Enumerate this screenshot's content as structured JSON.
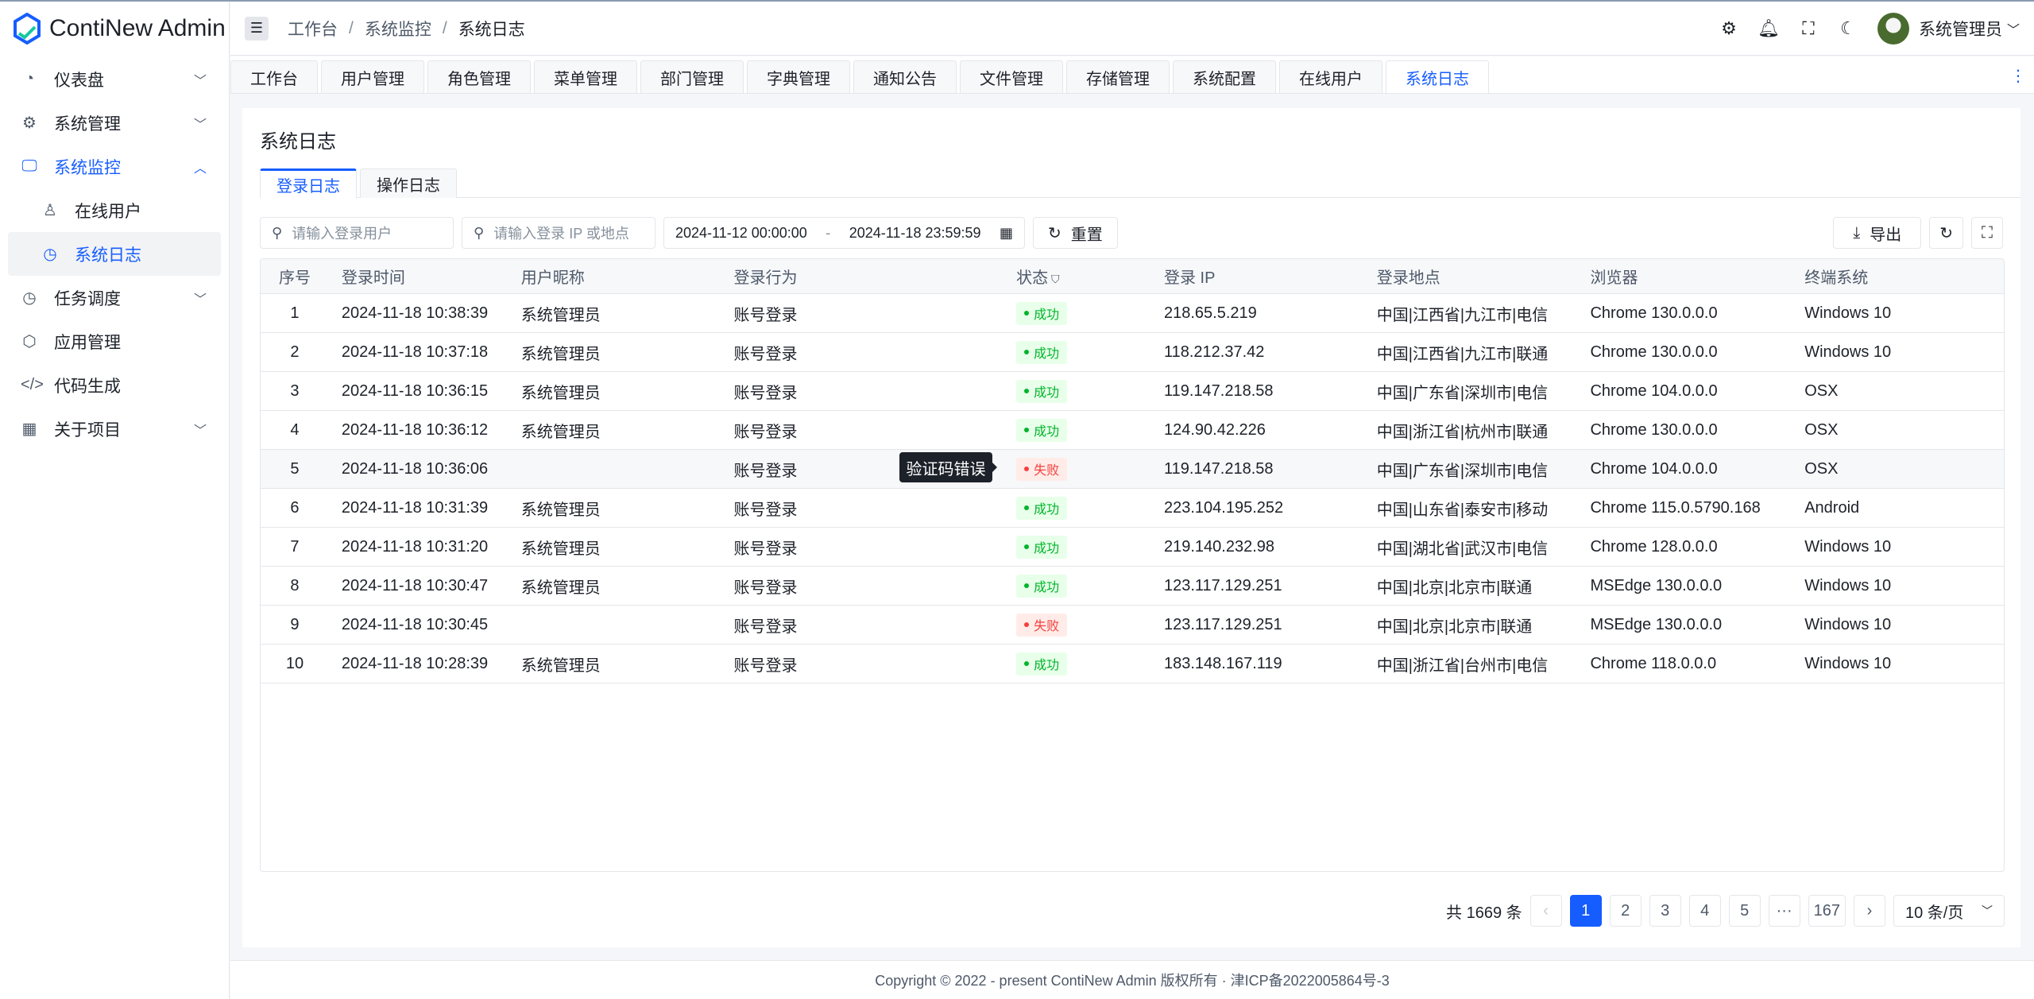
{
  "app": {
    "name": "ContiNew Admin"
  },
  "colors": {
    "primary": "#165dff",
    "success": "#00b42a",
    "danger": "#f53f3f"
  },
  "sidebar": {
    "items": [
      {
        "label": "仪表盘",
        "icon": "dashboard-icon",
        "chevron": "down"
      },
      {
        "label": "系统管理",
        "icon": "gear-icon",
        "chevron": "down"
      },
      {
        "label": "系统监控",
        "icon": "monitor-icon",
        "chevron": "up"
      },
      {
        "label": "在线用户",
        "icon": "user-icon"
      },
      {
        "label": "系统日志",
        "icon": "clock-icon"
      },
      {
        "label": "任务调度",
        "icon": "clock-icon",
        "chevron": "down"
      },
      {
        "label": "应用管理",
        "icon": "cube-icon"
      },
      {
        "label": "代码生成",
        "icon": "code-icon"
      },
      {
        "label": "关于项目",
        "icon": "grid-icon",
        "chevron": "down"
      }
    ]
  },
  "header": {
    "breadcrumb": [
      "工作台",
      "系统监控",
      "系统日志"
    ],
    "sep": "/",
    "user": "系统管理员"
  },
  "tabs": [
    "工作台",
    "用户管理",
    "角色管理",
    "菜单管理",
    "部门管理",
    "字典管理",
    "通知公告",
    "文件管理",
    "存储管理",
    "系统配置",
    "在线用户",
    "系统日志"
  ],
  "page": {
    "title": "系统日志",
    "tabs": [
      "登录日志",
      "操作日志"
    ],
    "filters": {
      "user_placeholder": "请输入登录用户",
      "ip_placeholder": "请输入登录 IP 或地点",
      "date_start": "2024-11-12 00:00:00",
      "date_sep": "-",
      "date_end": "2024-11-18 23:59:59",
      "reset": "重置",
      "export": "导出"
    }
  },
  "table": {
    "columns": [
      "序号",
      "登录时间",
      "用户昵称",
      "登录行为",
      "状态",
      "登录 IP",
      "登录地点",
      "浏览器",
      "终端系统"
    ],
    "rows": [
      [
        "1",
        "2024-11-18 10:38:39",
        "系统管理员",
        "账号登录",
        "成功",
        "218.65.5.219",
        "中国|江西省|九江市|电信",
        "Chrome 130.0.0.0",
        "Windows 10"
      ],
      [
        "2",
        "2024-11-18 10:37:18",
        "系统管理员",
        "账号登录",
        "成功",
        "118.212.37.42",
        "中国|江西省|九江市|联通",
        "Chrome 130.0.0.0",
        "Windows 10"
      ],
      [
        "3",
        "2024-11-18 10:36:15",
        "系统管理员",
        "账号登录",
        "成功",
        "119.147.218.58",
        "中国|广东省|深圳市|电信",
        "Chrome 104.0.0.0",
        "OSX"
      ],
      [
        "4",
        "2024-11-18 10:36:12",
        "系统管理员",
        "账号登录",
        "成功",
        "124.90.42.226",
        "中国|浙江省|杭州市|联通",
        "Chrome 130.0.0.0",
        "OSX"
      ],
      [
        "5",
        "2024-11-18 10:36:06",
        "",
        "账号登录",
        "失败",
        "119.147.218.58",
        "中国|广东省|深圳市|电信",
        "Chrome 104.0.0.0",
        "OSX"
      ],
      [
        "6",
        "2024-11-18 10:31:39",
        "系统管理员",
        "账号登录",
        "成功",
        "223.104.195.252",
        "中国|山东省|泰安市|移动",
        "Chrome 115.0.5790.168",
        "Android"
      ],
      [
        "7",
        "2024-11-18 10:31:20",
        "系统管理员",
        "账号登录",
        "成功",
        "219.140.232.98",
        "中国|湖北省|武汉市|电信",
        "Chrome 128.0.0.0",
        "Windows 10"
      ],
      [
        "8",
        "2024-11-18 10:30:47",
        "系统管理员",
        "账号登录",
        "成功",
        "123.117.129.251",
        "中国|北京|北京市|联通",
        "MSEdge 130.0.0.0",
        "Windows 10"
      ],
      [
        "9",
        "2024-11-18 10:30:45",
        "",
        "账号登录",
        "失败",
        "123.117.129.251",
        "中国|北京|北京市|联通",
        "MSEdge 130.0.0.0",
        "Windows 10"
      ],
      [
        "10",
        "2024-11-18 10:28:39",
        "系统管理员",
        "账号登录",
        "成功",
        "183.148.167.119",
        "中国|浙江省|台州市|电信",
        "Chrome 118.0.0.0",
        "Windows 10"
      ]
    ],
    "tooltip": "验证码错误"
  },
  "pagination": {
    "total": "共 1669 条",
    "pages": [
      "1",
      "2",
      "3",
      "4",
      "5",
      "···",
      "167"
    ],
    "current": "1",
    "page_size": "10 条/页"
  },
  "footer": "Copyright © 2022 - present ContiNew Admin 版权所有 · 津ICP备2022005864号-3"
}
